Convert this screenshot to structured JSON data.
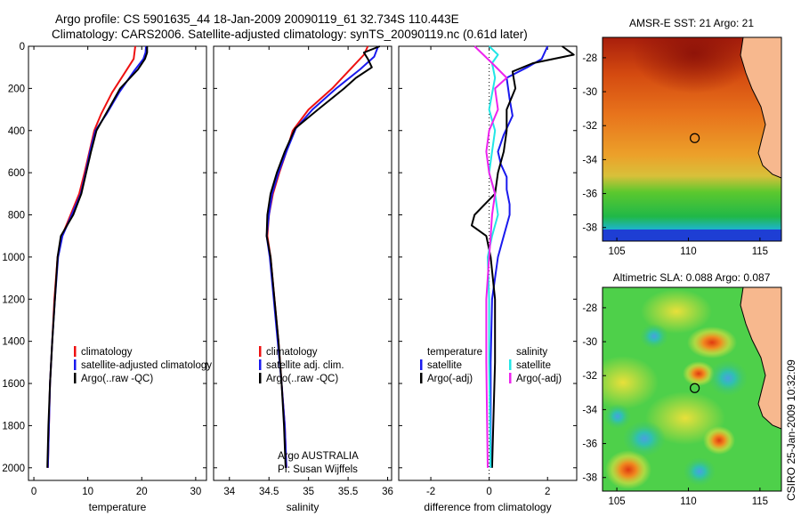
{
  "header": {
    "line1": "Argo profile: CS 5901635_44 18-Jan-2009 20090119_61 32.734S 110.443E",
    "line2": "Climatology: CARS2006. Satellite-adjusted climatology: synTS_20090119.nc (0.61d later)"
  },
  "side_label": "CSIRO 25-Jan-2009 10:32:09",
  "colors": {
    "climatology": "#ee1111",
    "satellite": "#1a1aee",
    "argo": "#000000",
    "sat_sal": "#22e6e6",
    "argo_sal": "#ee22ee"
  },
  "chart_data": [
    {
      "type": "line",
      "xlabel": "temperature",
      "xlim": [
        -1,
        32
      ],
      "xticks": [
        0,
        10,
        20,
        30
      ],
      "ylim": [
        0,
        2060
      ],
      "yticks": [
        0,
        200,
        400,
        600,
        800,
        1000,
        1200,
        1400,
        1600,
        1800,
        2000
      ],
      "legend": [
        "climatology",
        "satellite-adjusted climatology",
        "Argo(..raw -QC)"
      ],
      "series": [
        {
          "name": "climatology",
          "color": "#ee1111",
          "points": [
            [
              18.8,
              0
            ],
            [
              18.5,
              60
            ],
            [
              17,
              120
            ],
            [
              14.5,
              220
            ],
            [
              12.5,
              320
            ],
            [
              11.2,
              400
            ],
            [
              10.3,
              500
            ],
            [
              9.4,
              600
            ],
            [
              8.4,
              700
            ],
            [
              6.8,
              800
            ],
            [
              5.2,
              900
            ],
            [
              4.4,
              1000
            ],
            [
              3.8,
              1200
            ],
            [
              3.4,
              1400
            ],
            [
              3.0,
              1600
            ],
            [
              2.8,
              1800
            ],
            [
              2.6,
              2000
            ]
          ]
        },
        {
          "name": "satellite",
          "color": "#1a1aee",
          "points": [
            [
              20.8,
              0
            ],
            [
              20.7,
              30
            ],
            [
              20.3,
              60
            ],
            [
              18.5,
              120
            ],
            [
              15.8,
              220
            ],
            [
              13.5,
              320
            ],
            [
              11.4,
              400
            ],
            [
              10.4,
              500
            ],
            [
              9.6,
              600
            ],
            [
              8.7,
              700
            ],
            [
              7.0,
              800
            ],
            [
              5.3,
              900
            ],
            [
              4.5,
              1000
            ],
            [
              3.9,
              1200
            ],
            [
              3.4,
              1400
            ],
            [
              3.0,
              1600
            ],
            [
              2.8,
              1800
            ],
            [
              2.6,
              2000
            ]
          ]
        },
        {
          "name": "Argo",
          "color": "#000000",
          "points": [
            [
              21.0,
              0
            ],
            [
              21.0,
              30
            ],
            [
              20.6,
              60
            ],
            [
              19.3,
              110
            ],
            [
              16.0,
              200
            ],
            [
              13.8,
              300
            ],
            [
              11.6,
              400
            ],
            [
              10.6,
              500
            ],
            [
              9.7,
              600
            ],
            [
              8.8,
              700
            ],
            [
              7.3,
              800
            ],
            [
              5.0,
              900
            ],
            [
              4.4,
              1000
            ],
            [
              3.9,
              1200
            ],
            [
              3.4,
              1400
            ],
            [
              3.0,
              1600
            ],
            [
              2.7,
              1800
            ],
            [
              2.5,
              2000
            ]
          ]
        }
      ]
    },
    {
      "type": "line",
      "xlabel": "salinity",
      "xlim": [
        33.8,
        36.05
      ],
      "xticks": [
        34,
        34.5,
        35,
        35.5,
        36
      ],
      "ylim": [
        0,
        2060
      ],
      "legend": [
        "climatology",
        "satellite adj. clim.",
        "Argo(..raw -QC)"
      ],
      "credit": [
        "Argo AUSTRALIA",
        "PI: Susan Wijffels"
      ],
      "series": [
        {
          "name": "climatology",
          "color": "#ee1111",
          "points": [
            [
              35.75,
              0
            ],
            [
              35.7,
              40
            ],
            [
              35.55,
              100
            ],
            [
              35.3,
              200
            ],
            [
              35.0,
              300
            ],
            [
              34.8,
              400
            ],
            [
              34.72,
              500
            ],
            [
              34.63,
              600
            ],
            [
              34.55,
              700
            ],
            [
              34.5,
              800
            ],
            [
              34.48,
              900
            ],
            [
              34.52,
              1000
            ],
            [
              34.57,
              1200
            ],
            [
              34.62,
              1400
            ],
            [
              34.66,
              1600
            ],
            [
              34.7,
              1800
            ],
            [
              34.72,
              2000
            ]
          ]
        },
        {
          "name": "satellite",
          "color": "#1a1aee",
          "points": [
            [
              35.88,
              0
            ],
            [
              35.83,
              50
            ],
            [
              35.65,
              110
            ],
            [
              35.35,
              200
            ],
            [
              35.05,
              300
            ],
            [
              34.84,
              390
            ],
            [
              34.72,
              500
            ],
            [
              34.62,
              600
            ],
            [
              34.54,
              700
            ],
            [
              34.5,
              800
            ],
            [
              34.47,
              900
            ],
            [
              34.51,
              1000
            ],
            [
              34.56,
              1200
            ],
            [
              34.61,
              1400
            ],
            [
              34.66,
              1600
            ],
            [
              34.7,
              1800
            ],
            [
              34.72,
              2000
            ]
          ]
        },
        {
          "name": "Argo",
          "color": "#000000",
          "points": [
            [
              35.9,
              0
            ],
            [
              35.7,
              30
            ],
            [
              35.75,
              60
            ],
            [
              35.8,
              100
            ],
            [
              35.6,
              150
            ],
            [
              35.45,
              200
            ],
            [
              35.12,
              300
            ],
            [
              34.83,
              390
            ],
            [
              34.7,
              500
            ],
            [
              34.6,
              600
            ],
            [
              34.52,
              700
            ],
            [
              34.48,
              800
            ],
            [
              34.47,
              900
            ],
            [
              34.52,
              1000
            ],
            [
              34.57,
              1200
            ],
            [
              34.62,
              1400
            ],
            [
              34.66,
              1600
            ],
            [
              34.69,
              1800
            ],
            [
              34.71,
              2000
            ]
          ]
        }
      ]
    },
    {
      "type": "line",
      "xlabel": "difference from climatology",
      "xlim": [
        -3.1,
        3.0
      ],
      "xticks": [
        -2,
        0,
        2
      ],
      "ylim": [
        0,
        2060
      ],
      "zero_line": 0,
      "legend_left": [
        "temperature",
        "satellite",
        "Argo(-adj)"
      ],
      "legend_right": [
        "salinity",
        "satellite",
        "Argo(-adj)"
      ],
      "series": [
        {
          "name": "temperature satellite",
          "color": "#1a1aee",
          "points": [
            [
              2.0,
              0
            ],
            [
              1.8,
              60
            ],
            [
              1.3,
              100
            ],
            [
              0.6,
              150
            ],
            [
              0.7,
              250
            ],
            [
              0.8,
              330
            ],
            [
              0.5,
              420
            ],
            [
              0.3,
              500
            ],
            [
              0.4,
              560
            ],
            [
              0.6,
              620
            ],
            [
              0.6,
              680
            ],
            [
              0.7,
              750
            ],
            [
              0.7,
              800
            ],
            [
              0.5,
              900
            ],
            [
              0.3,
              1000
            ],
            [
              0.1,
              1200
            ],
            [
              0.05,
              1500
            ],
            [
              0.05,
              2000
            ]
          ]
        },
        {
          "name": "temperature Argo",
          "color": "#000000",
          "points": [
            [
              2.5,
              0
            ],
            [
              2.9,
              40
            ],
            [
              1.5,
              80
            ],
            [
              0.8,
              120
            ],
            [
              0.9,
              200
            ],
            [
              0.6,
              300
            ],
            [
              0.6,
              400
            ],
            [
              0.5,
              500
            ],
            [
              0.3,
              600
            ],
            [
              0.2,
              700
            ],
            [
              -0.5,
              800
            ],
            [
              -0.6,
              850
            ],
            [
              -0.1,
              900
            ],
            [
              0.05,
              1000
            ],
            [
              0.2,
              1200
            ],
            [
              0.2,
              1500
            ],
            [
              0.1,
              2000
            ]
          ]
        },
        {
          "name": "salinity satellite",
          "color": "#22e6e6",
          "points": [
            [
              0.0,
              0
            ],
            [
              0.3,
              40
            ],
            [
              0.1,
              80
            ],
            [
              0.2,
              150
            ],
            [
              0.0,
              300
            ],
            [
              0.2,
              400
            ],
            [
              0.1,
              500
            ],
            [
              0.0,
              600
            ],
            [
              0.2,
              700
            ],
            [
              0.3,
              800
            ],
            [
              0.1,
              900
            ],
            [
              -0.05,
              1000
            ],
            [
              0.0,
              1200
            ],
            [
              0.0,
              1500
            ],
            [
              0.05,
              2000
            ]
          ]
        },
        {
          "name": "salinity Argo",
          "color": "#ee22ee",
          "points": [
            [
              -0.5,
              0
            ],
            [
              -0.2,
              40
            ],
            [
              0.1,
              80
            ],
            [
              0.6,
              150
            ],
            [
              0.2,
              200
            ],
            [
              0.3,
              300
            ],
            [
              0.0,
              400
            ],
            [
              -0.1,
              500
            ],
            [
              0.0,
              600
            ],
            [
              0.2,
              700
            ],
            [
              0.1,
              800
            ],
            [
              0.05,
              900
            ],
            [
              0.0,
              1000
            ],
            [
              -0.1,
              1200
            ],
            [
              -0.1,
              1500
            ],
            [
              -0.05,
              2000
            ]
          ]
        }
      ]
    },
    {
      "type": "heatmap",
      "title": "AMSR-E SST: 21 Argo: 21",
      "xlim": [
        104,
        116.5
      ],
      "ylim": [
        -38.8,
        -26.8
      ],
      "xticks": [
        105,
        110,
        115
      ],
      "yticks": [
        -28,
        -30,
        -32,
        -34,
        -36,
        -38
      ],
      "marker": [
        110.443,
        -32.734
      ]
    },
    {
      "type": "heatmap",
      "title": "Altimetric SLA: 0.088 Argo: 0.087",
      "xlim": [
        104,
        116.5
      ],
      "ylim": [
        -38.8,
        -26.8
      ],
      "xticks": [
        105,
        110,
        115
      ],
      "yticks": [
        -28,
        -30,
        -32,
        -34,
        -36,
        -38
      ],
      "marker": [
        110.443,
        -32.734
      ]
    }
  ]
}
